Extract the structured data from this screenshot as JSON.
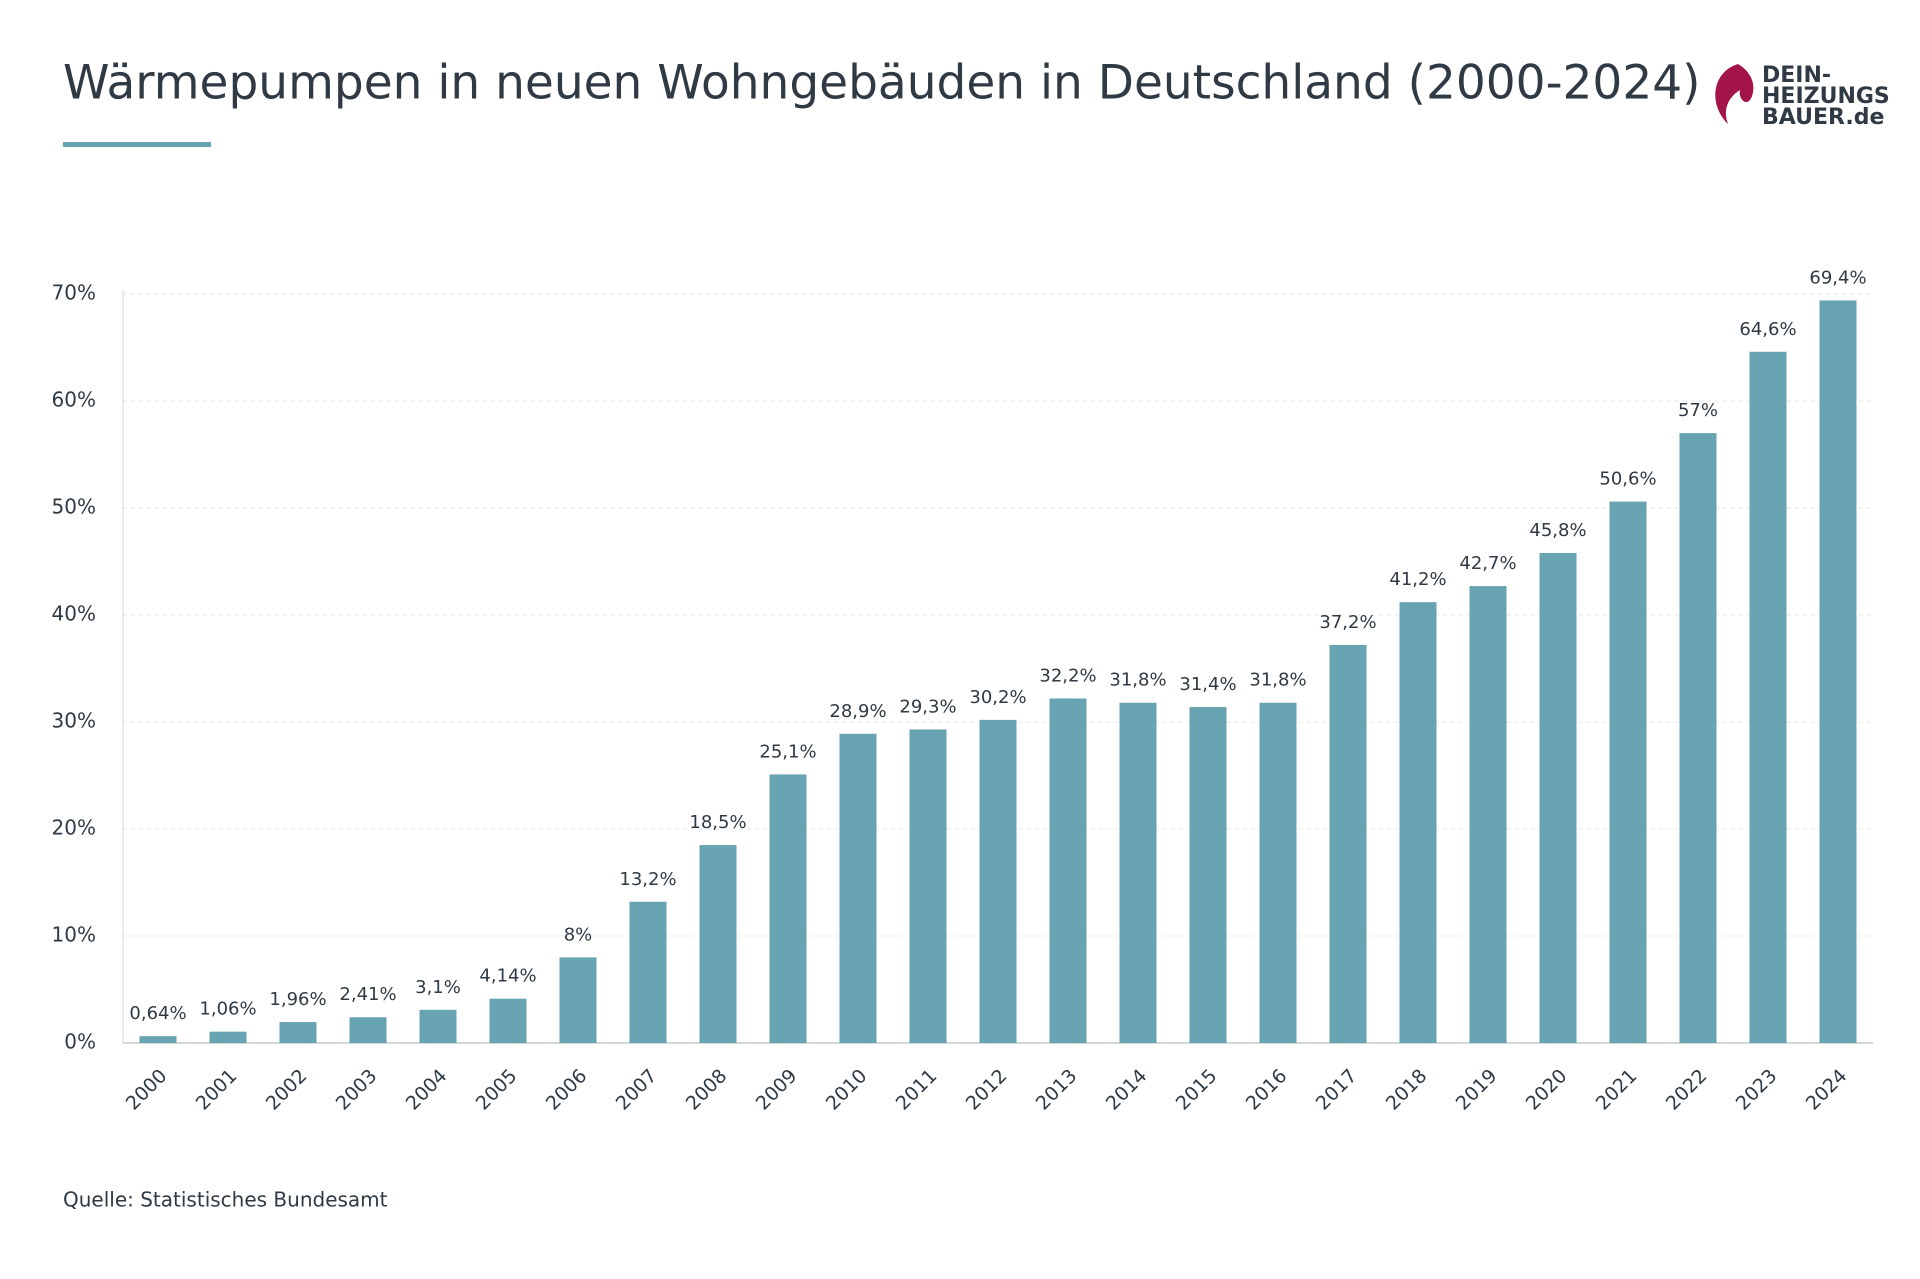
{
  "header": {
    "logo": [
      "DEIN-",
      "HEIZUNGS",
      "BAUER.de"
    ]
  },
  "chart_data": {
    "type": "bar",
    "title": "Wärmepumpen in neuen Wohngebäuden in Deutschland (2000-2024)",
    "source": "Quelle: Statistisches Bundesamt",
    "categories": [
      "2000",
      "2001",
      "2002",
      "2003",
      "2004",
      "2005",
      "2006",
      "2007",
      "2008",
      "2009",
      "2010",
      "2011",
      "2012",
      "2013",
      "2014",
      "2015",
      "2016",
      "2017",
      "2018",
      "2019",
      "2020",
      "2021",
      "2022",
      "2023",
      "2024"
    ],
    "values": [
      0.64,
      1.06,
      1.96,
      2.41,
      3.1,
      4.14,
      8,
      13.2,
      18.5,
      25.1,
      28.9,
      29.3,
      30.2,
      32.2,
      31.8,
      31.4,
      31.8,
      37.2,
      41.2,
      42.7,
      45.8,
      50.6,
      57,
      64.6,
      69.4
    ],
    "value_labels": [
      "0,64%",
      "1,06%",
      "1,96%",
      "2,41%",
      "3,1%",
      "4,14%",
      "8%",
      "13,2%",
      "18,5%",
      "25,1%",
      "28,9%",
      "29,3%",
      "30,2%",
      "32,2%",
      "31,8%",
      "31,4%",
      "31,8%",
      "37,2%",
      "41,2%",
      "42,7%",
      "45,8%",
      "50,6%",
      "57%",
      "64,6%",
      "69,4%"
    ],
    "color": "#68a3b1",
    "ylim": [
      0,
      70
    ],
    "yticks": [
      {
        "value": 0,
        "label": "0%"
      },
      {
        "value": 10,
        "label": "10%"
      },
      {
        "value": 20,
        "label": "20%"
      },
      {
        "value": 30,
        "label": "30%"
      },
      {
        "value": 40,
        "label": "40%"
      },
      {
        "value": 50,
        "label": "50%"
      },
      {
        "value": 60,
        "label": "60%"
      },
      {
        "value": 70,
        "label": "70%"
      }
    ],
    "grid": true
  }
}
